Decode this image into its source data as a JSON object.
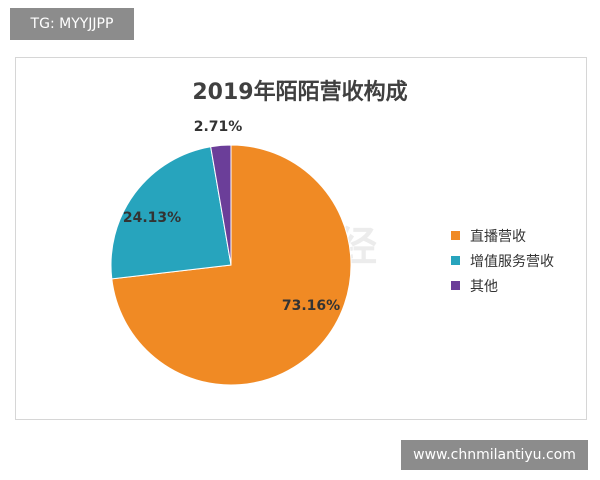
{
  "top_tag": "TG: MYYJJPP",
  "bottom_tag": "www.chnmilantiyu.com",
  "watermark": "点点财经",
  "chart_data": {
    "type": "pie",
    "title": "2019年陌陌营收构成",
    "slices": [
      {
        "label": "直播营收",
        "value": 73.16,
        "display": "73.16%",
        "color": "#f08a24"
      },
      {
        "label": "增值服务营收",
        "value": 24.13,
        "display": "24.13%",
        "color": "#27a4bd"
      },
      {
        "label": "其他",
        "value": 2.71,
        "display": "2.71%",
        "color": "#6b3e99"
      }
    ],
    "legend_position": "right"
  }
}
